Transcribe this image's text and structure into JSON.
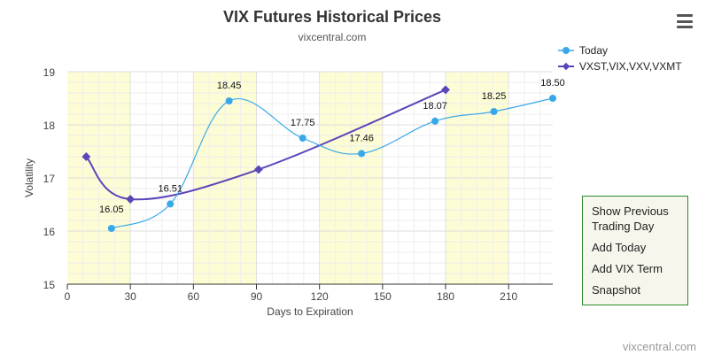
{
  "chart_data": {
    "type": "line",
    "title": "VIX Futures Historical Prices",
    "subtitle": "vixcentral.com",
    "xlabel": "Days to Expiration",
    "ylabel": "Volatility",
    "xlim": [
      0,
      231
    ],
    "ylim": [
      15,
      19
    ],
    "x_ticks": [
      0,
      30,
      60,
      90,
      120,
      150,
      180,
      210
    ],
    "y_ticks": [
      15,
      16,
      17,
      18,
      19
    ],
    "highlight_bands": [
      [
        0,
        30
      ],
      [
        60,
        90
      ],
      [
        120,
        150
      ],
      [
        180,
        210
      ]
    ],
    "grid": true,
    "legend_position": "top-right",
    "series": [
      {
        "name": "Today",
        "color": "#39a8ea",
        "points": [
          {
            "x": 21,
            "y": 16.05,
            "label": "16.05"
          },
          {
            "x": 49,
            "y": 16.51,
            "label": "16.51"
          },
          {
            "x": 77,
            "y": 18.45,
            "label": "18.45"
          },
          {
            "x": 112,
            "y": 17.75,
            "label": "17.75"
          },
          {
            "x": 140,
            "y": 17.46,
            "label": "17.46"
          },
          {
            "x": 175,
            "y": 18.07,
            "label": "18.07"
          },
          {
            "x": 203,
            "y": 18.25,
            "label": "18.25"
          },
          {
            "x": 231,
            "y": 18.5,
            "label": "18.50"
          }
        ]
      },
      {
        "name": "VXST,VIX,VXV,VXMT",
        "color": "#5b45b8",
        "points": [
          {
            "x": 9,
            "y": 17.4
          },
          {
            "x": 30,
            "y": 16.6
          },
          {
            "x": 91,
            "y": 17.16
          },
          {
            "x": 180,
            "y": 18.66
          }
        ]
      }
    ],
    "credit": "vixcentral.com"
  },
  "menu": {
    "items": [
      {
        "line1": "Show Previous",
        "line2": "Trading Day"
      },
      {
        "line1": "Add Today",
        "line2": ""
      },
      {
        "line1": "Add VIX Term",
        "line2": ""
      },
      {
        "line1": "Snapshot",
        "line2": ""
      }
    ]
  },
  "icons": {
    "menu": "hamburger-menu-icon"
  }
}
